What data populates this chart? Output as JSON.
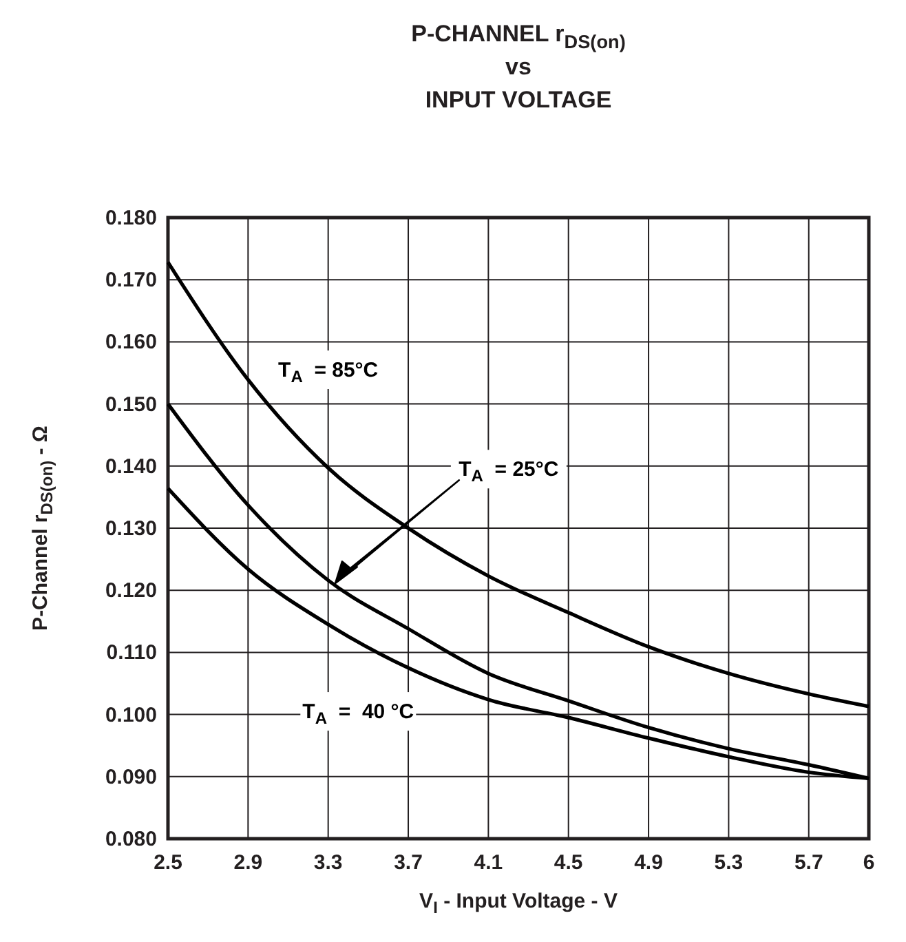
{
  "chart_data": {
    "type": "line",
    "title": "P-CHANNEL r$_{DS(on)}$\nvs\nINPUT VOLTAGE",
    "xlabel": "V$_{I}$ - Input Voltage - V",
    "ylabel": "P-Channel r$_{DS(on)}$ - Ω",
    "x": [
      2.5,
      2.9,
      3.3,
      3.7,
      4.1,
      4.5,
      4.9,
      5.3,
      5.7,
      6
    ],
    "series": [
      {
        "name": "T$_{A}$  = 85°C",
        "color": "#000000",
        "values": [
          0.1728,
          0.1539,
          0.1397,
          0.13,
          0.1223,
          0.1164,
          0.1109,
          0.1066,
          0.1033,
          0.1013
        ]
      },
      {
        "color": "#000000",
        "values": [
          0.15,
          0.1337,
          0.1216,
          0.1138,
          0.1066,
          0.1022,
          0.0979,
          0.0945,
          0.0919,
          0.0897
        ]
      },
      {
        "name": "T$_{A}$  =  40 °C",
        "color": "#000000",
        "values": [
          0.1364,
          0.1234,
          0.1145,
          0.1075,
          0.1024,
          0.0995,
          0.0962,
          0.0932,
          0.0907,
          0.0897
        ]
      }
    ],
    "xlim": [
      2.5,
      6
    ],
    "xticks": [
      2.5,
      2.9,
      3.3,
      3.7,
      4.1,
      4.5,
      4.9,
      5.3,
      5.7,
      6
    ],
    "ylim": [
      0.08,
      0.18
    ],
    "yticks": [
      {
        "value": 0.08,
        "label": "0.080"
      },
      {
        "value": 0.09,
        "label": "0.090"
      },
      {
        "value": 0.1,
        "label": "0.100"
      },
      {
        "value": 0.11,
        "label": "0.110"
      },
      {
        "value": 0.12,
        "label": "0.120"
      },
      {
        "value": 0.13,
        "label": "0.130"
      },
      {
        "value": 0.14,
        "label": "0.140"
      },
      {
        "value": 0.15,
        "label": "0.150"
      },
      {
        "value": 0.16,
        "label": "0.160"
      },
      {
        "value": 0.17,
        "label": "0.170"
      },
      {
        "value": 0.18,
        "label": "0.180"
      }
    ],
    "annotations": [
      "T$_{A}$  = 25°C"
    ],
    "grid": true,
    "marker": "none",
    "line_style": "solid"
  }
}
